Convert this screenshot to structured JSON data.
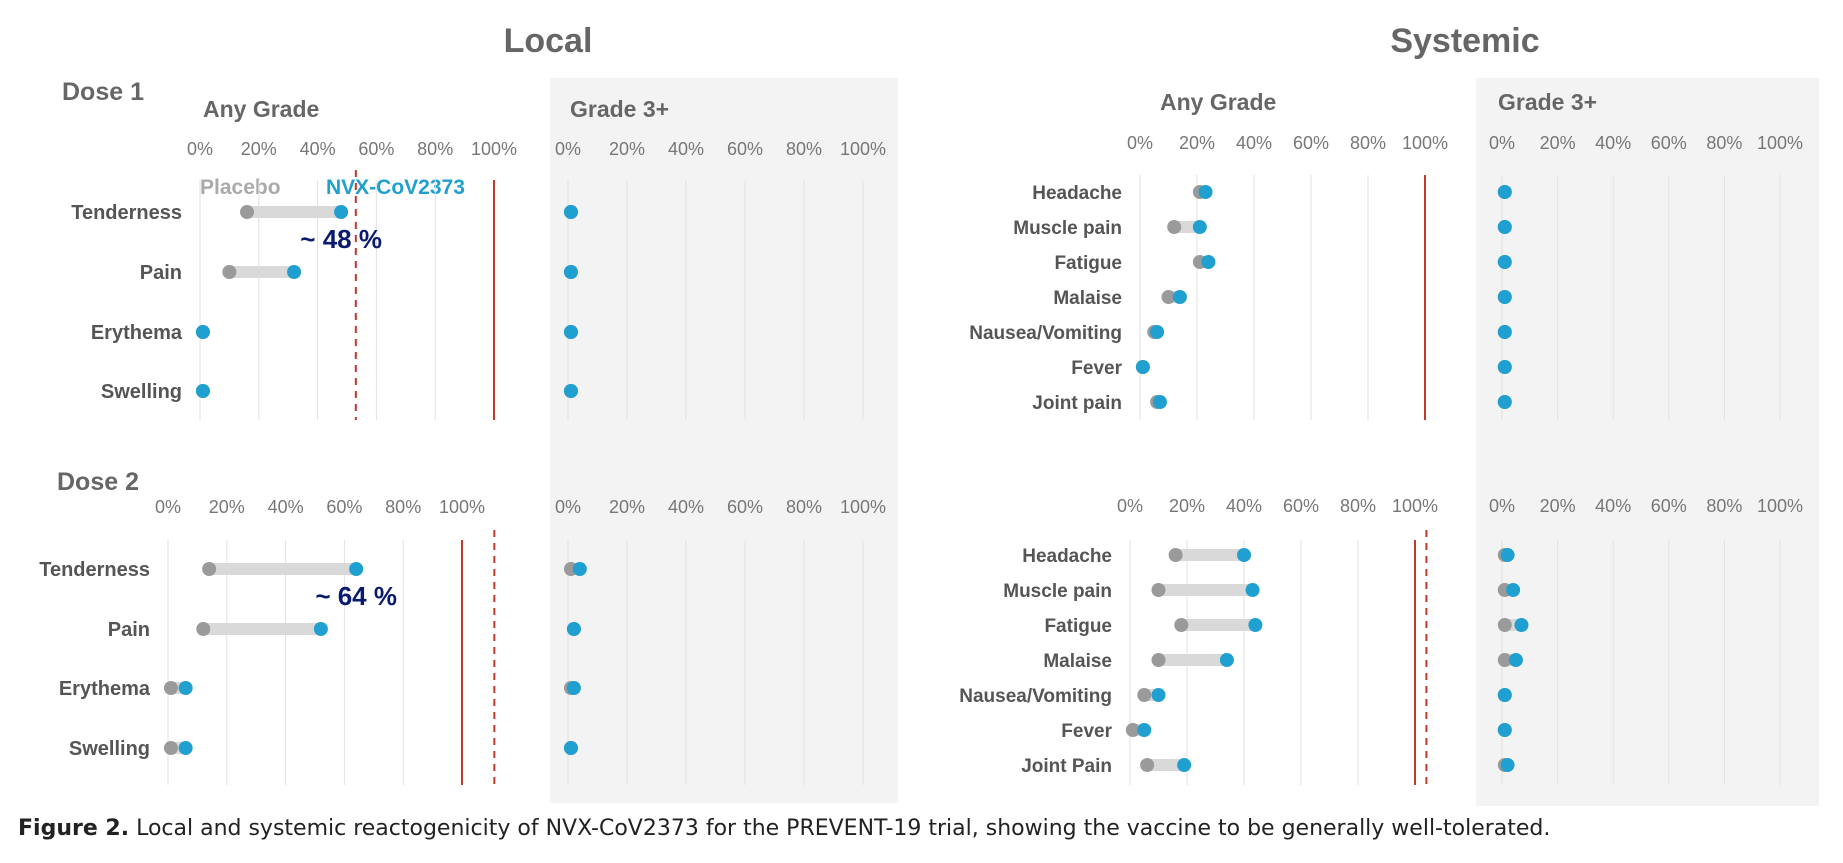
{
  "chart_data": {
    "type": "dumbbell",
    "section_titles": {
      "local": "Local",
      "systemic": "Systemic"
    },
    "dose_labels": {
      "dose1": "Dose 1",
      "dose2": "Dose 2"
    },
    "panel_titles": {
      "any": "Any Grade",
      "g3": "Grade 3+"
    },
    "legend": {
      "placebo": "Placebo",
      "vaccine": "NVX-CoV2373"
    },
    "tick_labels": [
      "0%",
      "20%",
      "40%",
      "60%",
      "80%",
      "100%"
    ],
    "xlim": [
      0,
      100
    ],
    "colors": {
      "placebo": "#9a9a9a",
      "vaccine": "#1fa0d0",
      "bar": "#d9d9d9",
      "ref": "#c0392b",
      "grade3_bg": "#f3f3f3",
      "annotation": "#0a1a6e"
    },
    "panels": [
      {
        "id": "local-d1-any",
        "categories": [
          "Tenderness",
          "Pain",
          "Erythema",
          "Swelling"
        ],
        "placebo": [
          16,
          10,
          1,
          1
        ],
        "vaccine": [
          48,
          32,
          1,
          1
        ],
        "ref_solid": 100,
        "ref_dashed": 53,
        "annotation": {
          "text": "~ 48 %",
          "category": "Tenderness"
        }
      },
      {
        "id": "local-d1-g3",
        "categories": [
          "Tenderness",
          "Pain",
          "Erythema",
          "Swelling"
        ],
        "placebo": [
          1,
          1,
          1,
          1
        ],
        "vaccine": [
          1,
          1,
          1,
          1
        ]
      },
      {
        "id": "local-d2-any",
        "categories": [
          "Tenderness",
          "Pain",
          "Erythema",
          "Swelling"
        ],
        "placebo": [
          14,
          12,
          1,
          1
        ],
        "vaccine": [
          64,
          52,
          6,
          6
        ],
        "ref_solid": 100,
        "ref_dashed": 111,
        "annotation": {
          "text": "~ 64 %",
          "category": "Tenderness"
        }
      },
      {
        "id": "local-d2-g3",
        "categories": [
          "Tenderness",
          "Pain",
          "Erythema",
          "Swelling"
        ],
        "placebo": [
          1,
          2,
          1,
          1
        ],
        "vaccine": [
          4,
          2,
          2,
          1
        ]
      },
      {
        "id": "sys-d1-any",
        "categories": [
          "Headache",
          "Muscle pain",
          "Fatigue",
          "Malaise",
          "Nausea/Vomiting",
          "Fever",
          "Joint pain"
        ],
        "placebo": [
          21,
          12,
          21,
          10,
          5,
          1,
          6
        ],
        "vaccine": [
          23,
          21,
          24,
          14,
          6,
          1,
          7
        ],
        "ref_solid": 100
      },
      {
        "id": "sys-d1-g3",
        "categories": [
          "Headache",
          "Muscle pain",
          "Fatigue",
          "Malaise",
          "Nausea/Vomiting",
          "Fever",
          "Joint pain"
        ],
        "placebo": [
          1,
          1,
          1,
          1,
          1,
          1,
          1
        ],
        "vaccine": [
          1,
          1,
          1,
          1,
          1,
          1,
          1
        ]
      },
      {
        "id": "sys-d2-any",
        "categories": [
          "Headache",
          "Muscle pain",
          "Fatigue",
          "Malaise",
          "Nausea/Vomiting",
          "Fever",
          "Joint Pain"
        ],
        "placebo": [
          16,
          10,
          18,
          10,
          5,
          1,
          6
        ],
        "vaccine": [
          40,
          43,
          44,
          34,
          10,
          5,
          19
        ],
        "ref_solid": 100,
        "ref_dashed": 104
      },
      {
        "id": "sys-d2-g3",
        "categories": [
          "Headache",
          "Muscle pain",
          "Fatigue",
          "Malaise",
          "Nausea/Vomiting",
          "Fever",
          "Joint Pain"
        ],
        "placebo": [
          1,
          1,
          1,
          1,
          1,
          1,
          1
        ],
        "vaccine": [
          2,
          4,
          7,
          5,
          1,
          1,
          2
        ]
      }
    ]
  },
  "caption": {
    "label": "Figure 2.",
    "text": " Local and systemic reactogenicity of NVX-CoV2373 for the PREVENT-19 trial, showing the vaccine to be generally well-tolerated."
  }
}
